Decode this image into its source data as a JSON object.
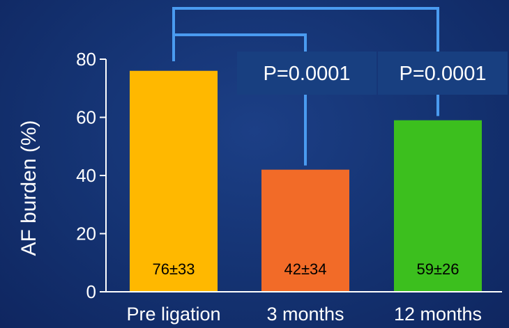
{
  "chart_data": {
    "type": "bar",
    "categories": [
      "Pre ligation",
      "3 months",
      "12 months"
    ],
    "values": [
      76,
      42,
      59
    ],
    "data_labels": [
      "76±33",
      "42±34",
      "59±26"
    ],
    "colors": [
      "#ffb800",
      "#f26b28",
      "#3cbf1e"
    ],
    "ylabel": "AF burden (%)",
    "ylim": [
      0,
      80
    ],
    "yticks": [
      0,
      20,
      40,
      60,
      80
    ],
    "grid": false,
    "annotations": [
      {
        "text": "P=0.0001",
        "from": 0,
        "to": 1
      },
      {
        "text": "P=0.0001",
        "from": 0,
        "to": 2
      }
    ],
    "colors_ui": {
      "background": "#153474",
      "bracket": "#4a9bf0",
      "p_box": "#183f80",
      "axis": "#ffffff"
    }
  }
}
